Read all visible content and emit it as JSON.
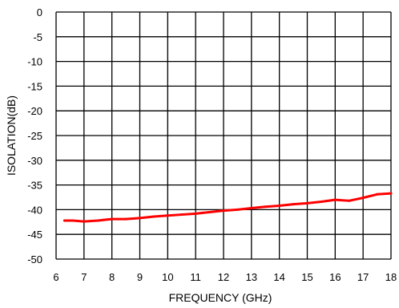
{
  "chart_data": {
    "type": "line",
    "title": "",
    "xlabel": "FREQUENCY (GHz)",
    "ylabel": "ISOLATION(dB)",
    "xlim": [
      6,
      18
    ],
    "ylim": [
      -50,
      0
    ],
    "xticks": [
      6,
      7,
      8,
      9,
      10,
      11,
      12,
      13,
      14,
      15,
      16,
      17,
      18
    ],
    "yticks": [
      0,
      -5,
      -10,
      -15,
      -20,
      -25,
      -30,
      -35,
      -40,
      -45,
      -50
    ],
    "grid": true,
    "legend": "none",
    "series": [
      {
        "color": "#ff0000",
        "x": [
          6.3,
          6.6,
          7.0,
          7.5,
          8.0,
          8.5,
          9.0,
          9.5,
          10.0,
          10.5,
          11.0,
          11.5,
          12.0,
          12.5,
          13.0,
          13.5,
          14.0,
          14.5,
          15.0,
          15.5,
          16.0,
          16.5,
          17.0,
          17.5,
          18.0
        ],
        "y": [
          -42.2,
          -42.2,
          -42.4,
          -42.2,
          -41.9,
          -41.9,
          -41.7,
          -41.4,
          -41.2,
          -41.0,
          -40.8,
          -40.5,
          -40.2,
          -40.0,
          -39.7,
          -39.4,
          -39.2,
          -38.9,
          -38.7,
          -38.4,
          -38.0,
          -38.2,
          -37.6,
          -36.9,
          -36.7
        ]
      }
    ],
    "colors": {
      "grid": "#000000",
      "line": "#ff0000"
    }
  }
}
